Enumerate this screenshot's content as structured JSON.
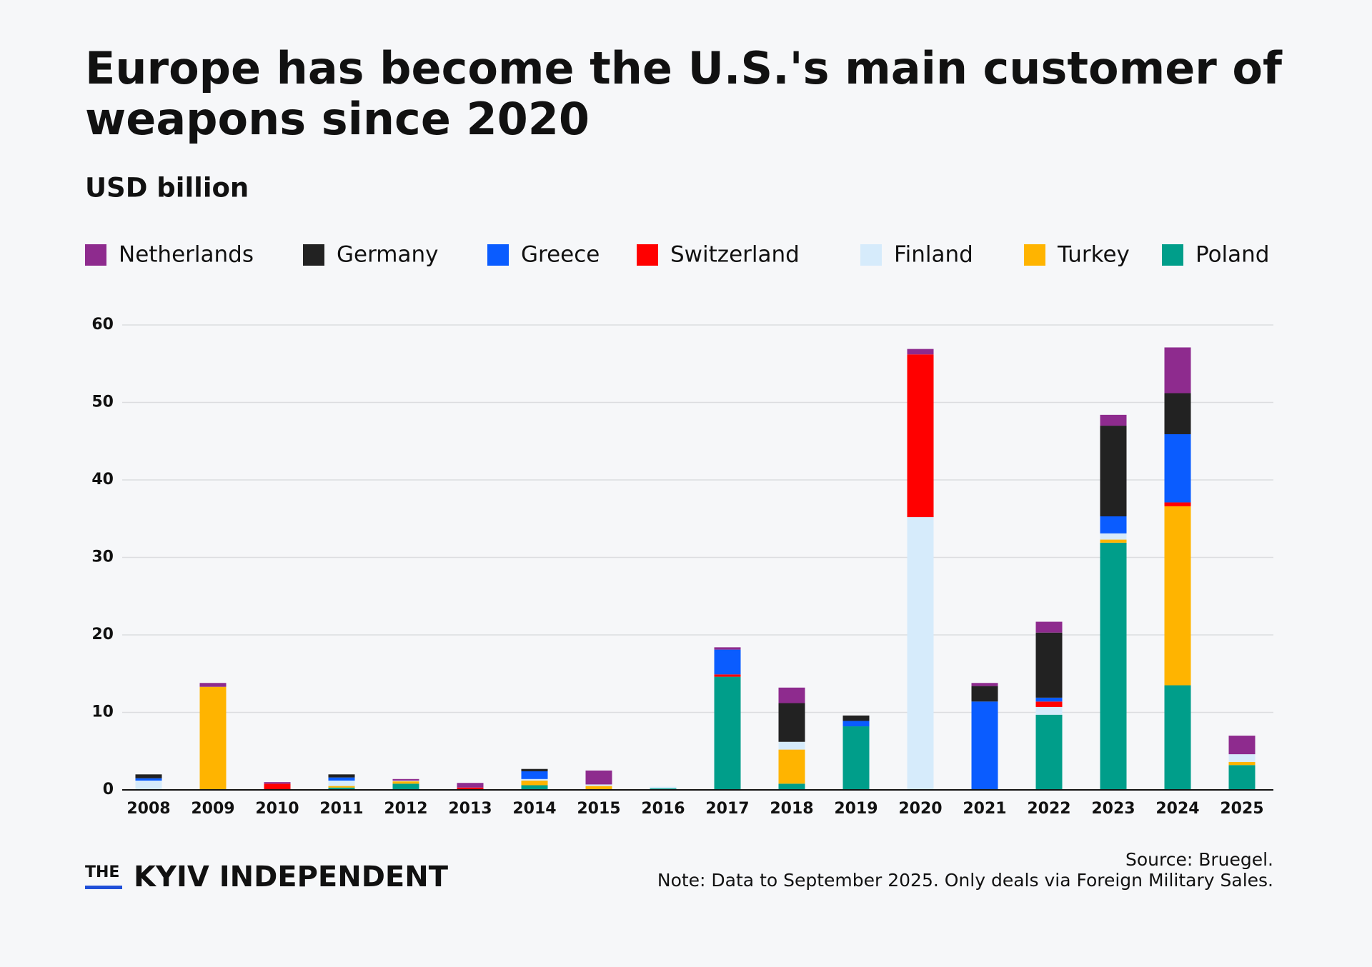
{
  "chart_data": {
    "type": "stacked-bar",
    "title": [
      "Europe has become the U.S.'s main customer of",
      "weapons since 2020"
    ],
    "subtitle": "USD billion",
    "categories": [
      "2008",
      "2009",
      "2010",
      "2011",
      "2012",
      "2013",
      "2014",
      "2015",
      "2016",
      "2017",
      "2018",
      "2019",
      "2020",
      "2021",
      "2022",
      "2023",
      "2024",
      "2025"
    ],
    "series": [
      {
        "name": "Netherlands",
        "color": "#8e2b8e",
        "values": [
          0,
          0.5,
          0.2,
          0,
          0.2,
          0.6,
          0,
          1.8,
          0,
          0.3,
          2.0,
          0,
          0.7,
          0.4,
          1.4,
          1.4,
          5.9,
          2.4
        ]
      },
      {
        "name": "Germany",
        "color": "#222222",
        "values": [
          0.5,
          0,
          0,
          0.4,
          0,
          0,
          0.3,
          0,
          0,
          0,
          5.0,
          0.7,
          0,
          2.0,
          8.4,
          11.7,
          5.3,
          0
        ]
      },
      {
        "name": "Greece",
        "color": "#0a5cff",
        "values": [
          0.3,
          0,
          0,
          0.4,
          0,
          0,
          1.0,
          0,
          0,
          3.2,
          0,
          0.7,
          0,
          11.4,
          0.5,
          2.2,
          8.8,
          0
        ]
      },
      {
        "name": "Switzerland",
        "color": "#ff0000",
        "values": [
          0,
          0,
          0.8,
          0,
          0,
          0.3,
          0,
          0,
          0,
          0.3,
          0,
          0,
          21.0,
          0,
          0.7,
          0,
          0.5,
          0
        ]
      },
      {
        "name": "Finland",
        "color": "#d6ebfb",
        "values": [
          1.2,
          0,
          0,
          0.7,
          0.1,
          0,
          0.2,
          0.2,
          0.2,
          0,
          1.0,
          0,
          35.1,
          0,
          1.0,
          0.8,
          0,
          1.0
        ]
      },
      {
        "name": "Turkey",
        "color": "#ffb400",
        "values": [
          0,
          13.3,
          0,
          0.2,
          0.3,
          0,
          0.6,
          0.5,
          0,
          0,
          4.4,
          0,
          0,
          0,
          0,
          0.4,
          23.1,
          0.4
        ]
      },
      {
        "name": "Poland",
        "color": "#009e8a",
        "values": [
          0,
          0,
          0,
          0.3,
          0.8,
          0,
          0.6,
          0,
          0.2,
          14.6,
          0.8,
          8.2,
          0.1,
          0,
          9.7,
          31.9,
          13.5,
          3.2
        ]
      }
    ],
    "ylim": [
      0,
      60
    ],
    "yticks": [
      0,
      10,
      20,
      30,
      40,
      50,
      60
    ],
    "grid": true,
    "source": "Source: Bruegel.",
    "note": "Note: Data to September 2025. Only deals via Foreign Military Sales."
  },
  "logo": {
    "the": "THE",
    "name": "KYIV INDEPENDENT"
  }
}
